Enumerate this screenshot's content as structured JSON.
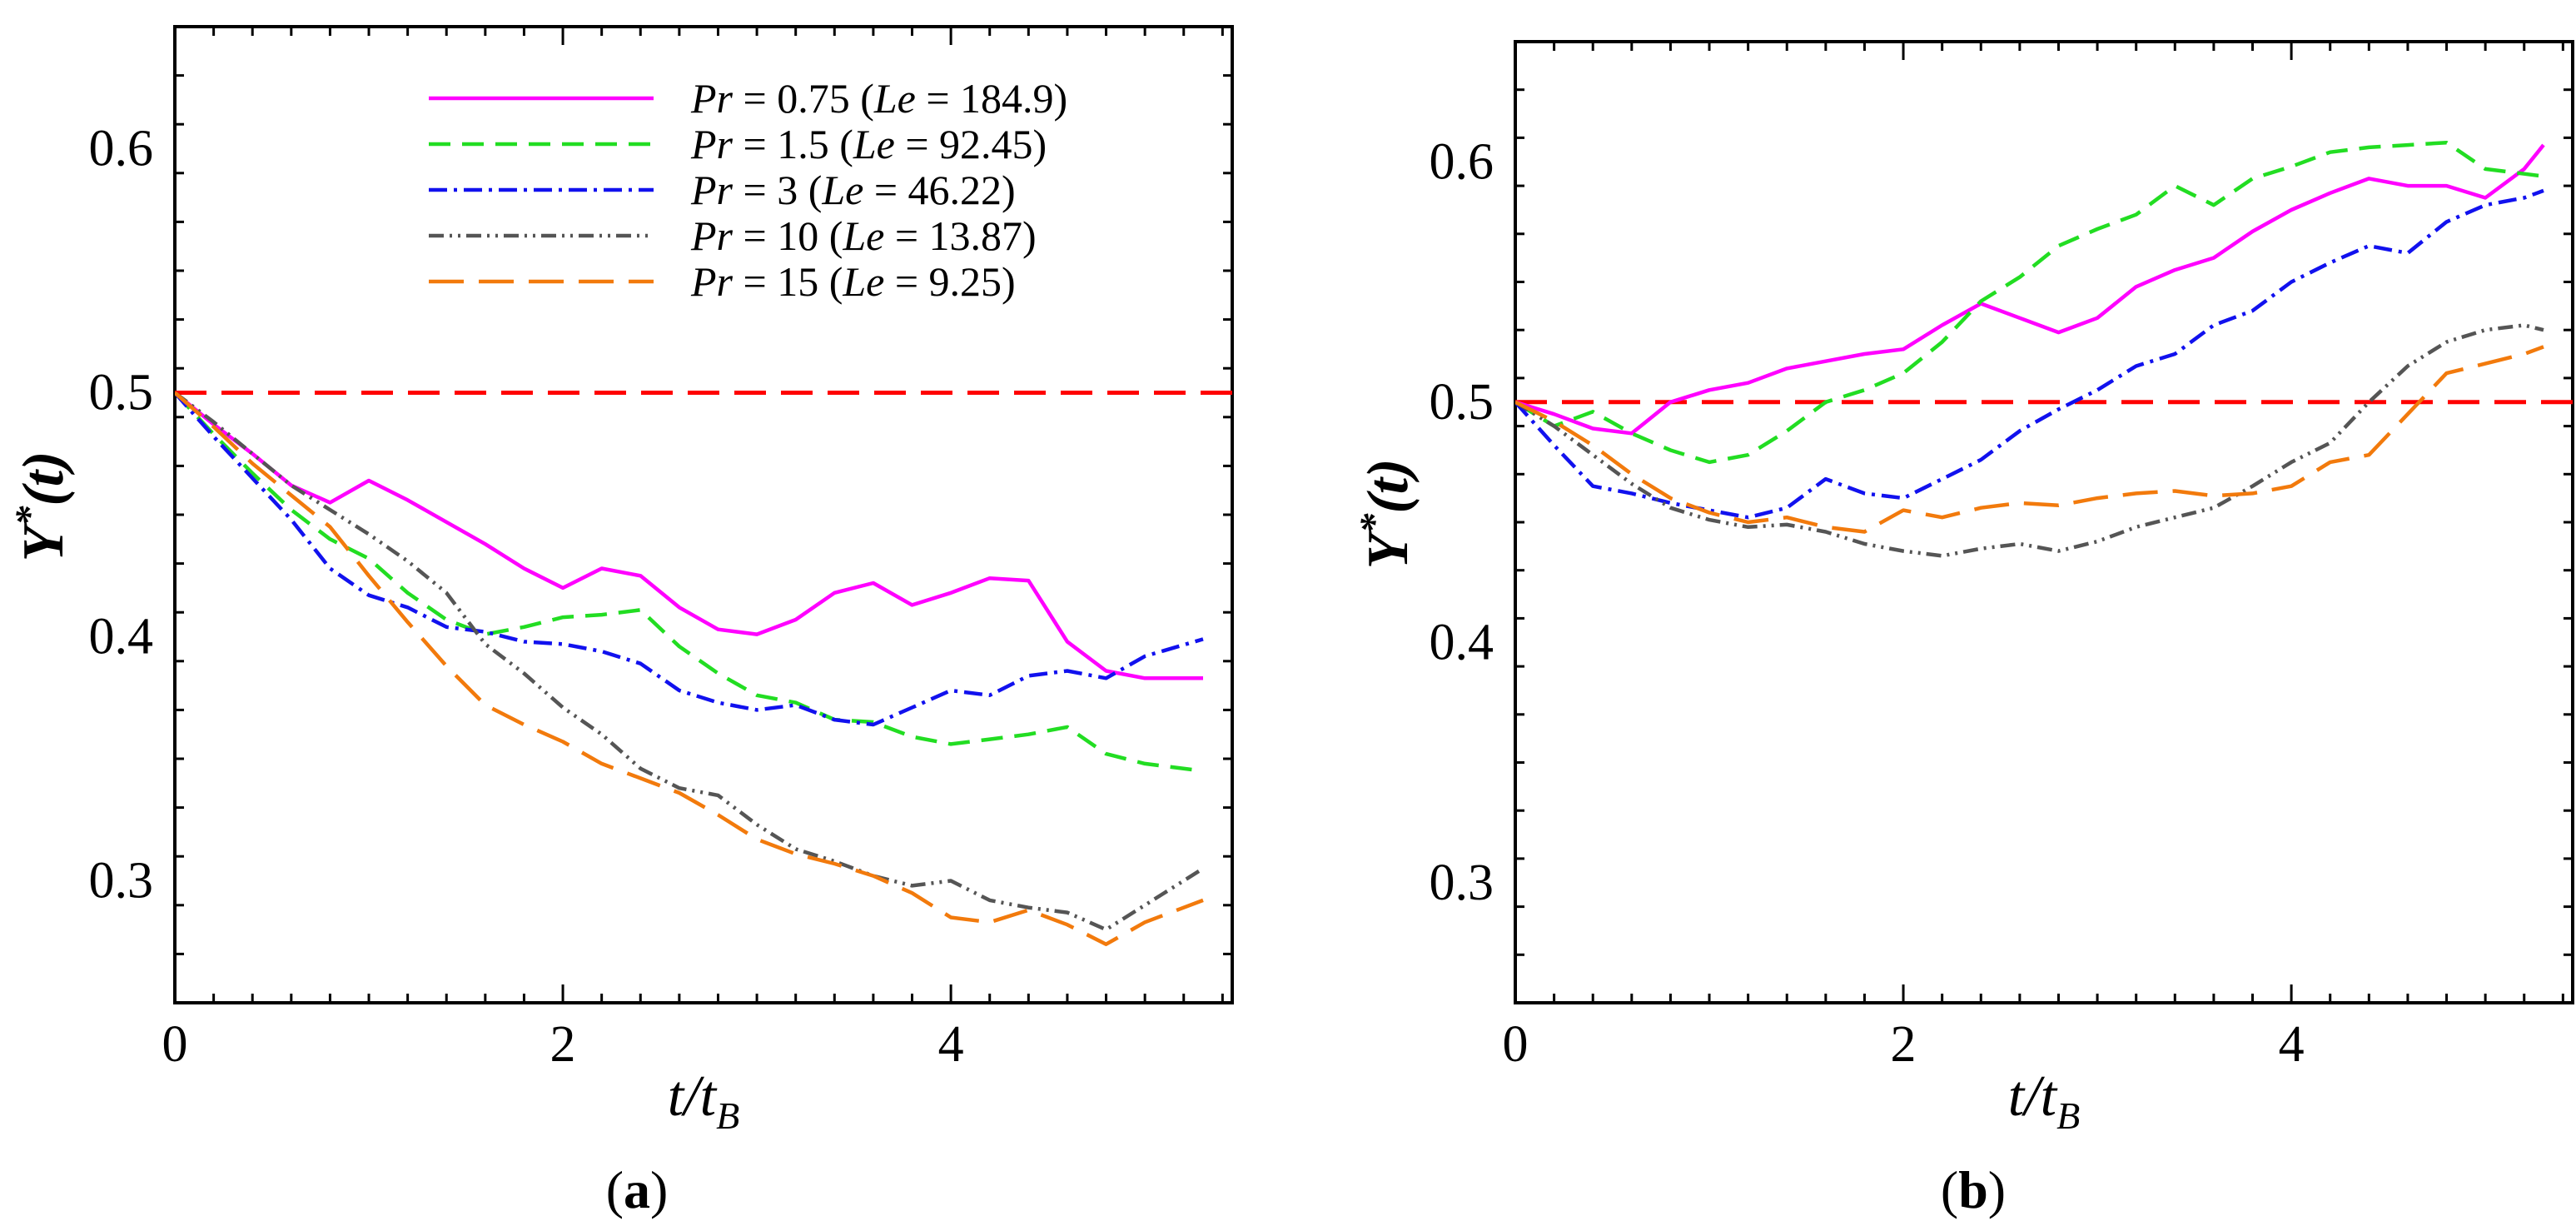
{
  "figure": {
    "colors": {
      "Pr_0.75": "#ff00ff",
      "Pr_1.5": "#22dd22",
      "Pr_3": "#1111ee",
      "Pr_10": "#555555",
      "Pr_15": "#f27a0c",
      "reference": "#ff0000"
    }
  },
  "chart_data": [
    {
      "type": "line",
      "panel_label": "(a)",
      "panel_letter": "a",
      "xlabel": "t/t_B",
      "ylabel": "Y*(t)",
      "xlim": [
        0,
        5.45
      ],
      "ylim": [
        0.25,
        0.65
      ],
      "xticks": [
        0,
        2,
        4
      ],
      "yticks": [
        0.3,
        0.4,
        0.5,
        0.6
      ],
      "reference_line": 0.5,
      "legend": {
        "position": "top-right"
      },
      "series": [
        {
          "key": "Pr_0.75",
          "name": "Pr = 0.75 (Le = 184.9)",
          "pr": "0.75",
          "le": "184.9",
          "style": "solid",
          "x": [
            0,
            0.2,
            0.4,
            0.6,
            0.8,
            1.0,
            1.2,
            1.4,
            1.6,
            1.8,
            2.0,
            2.2,
            2.4,
            2.6,
            2.8,
            3.0,
            3.2,
            3.4,
            3.6,
            3.8,
            4.0,
            4.2,
            4.4,
            4.6,
            4.8,
            5.0,
            5.3
          ],
          "y": [
            0.5,
            0.487,
            0.475,
            0.462,
            0.455,
            0.464,
            0.456,
            0.447,
            0.438,
            0.428,
            0.42,
            0.428,
            0.425,
            0.412,
            0.403,
            0.401,
            0.407,
            0.418,
            0.422,
            0.413,
            0.418,
            0.424,
            0.423,
            0.398,
            0.386,
            0.383,
            0.383
          ]
        },
        {
          "key": "Pr_1.5",
          "name": "Pr = 1.5 (Le = 92.45)",
          "pr": "1.5",
          "le": "92.45",
          "style": "dashed",
          "x": [
            0,
            0.2,
            0.4,
            0.6,
            0.8,
            1.0,
            1.2,
            1.4,
            1.6,
            1.8,
            2.0,
            2.2,
            2.4,
            2.6,
            2.8,
            3.0,
            3.2,
            3.4,
            3.6,
            3.8,
            4.0,
            4.2,
            4.4,
            4.6,
            4.8,
            5.0,
            5.3
          ],
          "y": [
            0.5,
            0.483,
            0.467,
            0.452,
            0.44,
            0.432,
            0.418,
            0.407,
            0.401,
            0.404,
            0.408,
            0.409,
            0.411,
            0.396,
            0.385,
            0.376,
            0.373,
            0.366,
            0.365,
            0.359,
            0.356,
            0.358,
            0.36,
            0.363,
            0.352,
            0.348,
            0.345
          ]
        },
        {
          "key": "Pr_3",
          "name": "Pr = 3 (Le = 46.22)",
          "pr": "3",
          "le": "46.22",
          "style": "dash-dot",
          "x": [
            0,
            0.2,
            0.4,
            0.6,
            0.8,
            1.0,
            1.2,
            1.4,
            1.6,
            1.8,
            2.0,
            2.2,
            2.4,
            2.6,
            2.8,
            3.0,
            3.2,
            3.4,
            3.6,
            3.8,
            4.0,
            4.2,
            4.4,
            4.6,
            4.8,
            5.0,
            5.3
          ],
          "y": [
            0.5,
            0.482,
            0.465,
            0.448,
            0.428,
            0.417,
            0.412,
            0.404,
            0.402,
            0.398,
            0.397,
            0.394,
            0.389,
            0.378,
            0.373,
            0.37,
            0.372,
            0.366,
            0.364,
            0.371,
            0.378,
            0.376,
            0.384,
            0.386,
            0.383,
            0.392,
            0.399
          ]
        },
        {
          "key": "Pr_10",
          "name": "Pr = 10 (Le = 13.87)",
          "pr": "10",
          "le": "13.87",
          "style": "dash-dot-dot",
          "x": [
            0,
            0.2,
            0.4,
            0.6,
            0.8,
            1.0,
            1.2,
            1.4,
            1.6,
            1.8,
            2.0,
            2.2,
            2.4,
            2.6,
            2.8,
            3.0,
            3.2,
            3.4,
            3.6,
            3.8,
            4.0,
            4.2,
            4.4,
            4.6,
            4.8,
            5.0,
            5.3
          ],
          "y": [
            0.5,
            0.488,
            0.475,
            0.462,
            0.452,
            0.442,
            0.431,
            0.418,
            0.397,
            0.385,
            0.371,
            0.36,
            0.346,
            0.338,
            0.335,
            0.323,
            0.313,
            0.308,
            0.302,
            0.298,
            0.3,
            0.292,
            0.289,
            0.287,
            0.28,
            0.29,
            0.305
          ]
        },
        {
          "key": "Pr_15",
          "name": "Pr = 15 (Le = 9.25)",
          "pr": "15",
          "le": "9.25",
          "style": "long-dash",
          "x": [
            0,
            0.2,
            0.4,
            0.6,
            0.8,
            1.0,
            1.2,
            1.4,
            1.6,
            1.8,
            2.0,
            2.2,
            2.4,
            2.6,
            2.8,
            3.0,
            3.2,
            3.4,
            3.6,
            3.8,
            4.0,
            4.2,
            4.4,
            4.6,
            4.8,
            5.0,
            5.3
          ],
          "y": [
            0.5,
            0.486,
            0.471,
            0.458,
            0.445,
            0.425,
            0.406,
            0.388,
            0.372,
            0.364,
            0.357,
            0.348,
            0.342,
            0.336,
            0.327,
            0.317,
            0.311,
            0.307,
            0.302,
            0.295,
            0.285,
            0.283,
            0.288,
            0.282,
            0.274,
            0.283,
            0.292
          ]
        }
      ]
    },
    {
      "type": "line",
      "panel_label": "(b)",
      "panel_letter": "b",
      "xlabel": "t/t_B",
      "ylabel": "Y*(t)",
      "xlim": [
        0,
        5.45
      ],
      "ylim": [
        0.25,
        0.65
      ],
      "xticks": [
        0,
        2,
        4
      ],
      "yticks": [
        0.3,
        0.4,
        0.5,
        0.6
      ],
      "reference_line": 0.5,
      "series": [
        {
          "key": "Pr_0.75",
          "name": "Pr = 0.75 (Le = 184.9)",
          "style": "solid",
          "x": [
            0,
            0.2,
            0.4,
            0.6,
            0.8,
            1.0,
            1.2,
            1.4,
            1.6,
            1.8,
            2.0,
            2.2,
            2.4,
            2.6,
            2.8,
            3.0,
            3.2,
            3.4,
            3.6,
            3.8,
            4.0,
            4.2,
            4.4,
            4.6,
            4.8,
            5.0,
            5.2,
            5.3
          ],
          "y": [
            0.5,
            0.495,
            0.489,
            0.487,
            0.5,
            0.505,
            0.508,
            0.514,
            0.517,
            0.52,
            0.522,
            0.532,
            0.541,
            0.535,
            0.529,
            0.535,
            0.548,
            0.555,
            0.56,
            0.571,
            0.58,
            0.587,
            0.593,
            0.59,
            0.59,
            0.585,
            0.597,
            0.607
          ]
        },
        {
          "key": "Pr_1.5",
          "name": "Pr = 1.5 (Le = 92.45)",
          "style": "dashed",
          "x": [
            0,
            0.2,
            0.4,
            0.6,
            0.8,
            1.0,
            1.2,
            1.4,
            1.6,
            1.8,
            2.0,
            2.2,
            2.4,
            2.6,
            2.8,
            3.0,
            3.2,
            3.4,
            3.6,
            3.8,
            4.0,
            4.2,
            4.4,
            4.6,
            4.8,
            5.0,
            5.2,
            5.3
          ],
          "y": [
            0.5,
            0.49,
            0.496,
            0.487,
            0.48,
            0.475,
            0.478,
            0.488,
            0.5,
            0.505,
            0.512,
            0.525,
            0.542,
            0.552,
            0.565,
            0.572,
            0.578,
            0.59,
            0.582,
            0.593,
            0.598,
            0.604,
            0.606,
            0.607,
            0.608,
            0.597,
            0.595,
            0.594
          ]
        },
        {
          "key": "Pr_3",
          "name": "Pr = 3 (Le = 46.22)",
          "style": "dash-dot",
          "x": [
            0,
            0.2,
            0.4,
            0.6,
            0.8,
            1.0,
            1.2,
            1.4,
            1.6,
            1.8,
            2.0,
            2.2,
            2.4,
            2.6,
            2.8,
            3.0,
            3.2,
            3.4,
            3.6,
            3.8,
            4.0,
            4.2,
            4.4,
            4.6,
            4.8,
            5.0,
            5.2,
            5.3
          ],
          "y": [
            0.5,
            0.482,
            0.465,
            0.462,
            0.458,
            0.455,
            0.452,
            0.456,
            0.468,
            0.462,
            0.46,
            0.468,
            0.476,
            0.488,
            0.497,
            0.505,
            0.515,
            0.52,
            0.532,
            0.538,
            0.55,
            0.558,
            0.565,
            0.562,
            0.575,
            0.582,
            0.585,
            0.588
          ]
        },
        {
          "key": "Pr_10",
          "name": "Pr = 10 (Le = 13.87)",
          "style": "dash-dot-dot",
          "x": [
            0,
            0.2,
            0.4,
            0.6,
            0.8,
            1.0,
            1.2,
            1.4,
            1.6,
            1.8,
            2.0,
            2.2,
            2.4,
            2.6,
            2.8,
            3.0,
            3.2,
            3.4,
            3.6,
            3.8,
            4.0,
            4.2,
            4.4,
            4.6,
            4.8,
            5.0,
            5.2,
            5.3
          ],
          "y": [
            0.5,
            0.49,
            0.478,
            0.466,
            0.456,
            0.451,
            0.448,
            0.449,
            0.446,
            0.441,
            0.438,
            0.436,
            0.439,
            0.441,
            0.438,
            0.442,
            0.448,
            0.452,
            0.456,
            0.465,
            0.475,
            0.483,
            0.5,
            0.515,
            0.525,
            0.53,
            0.532,
            0.53
          ]
        },
        {
          "key": "Pr_15",
          "name": "Pr = 15 (Le = 9.25)",
          "style": "long-dash",
          "x": [
            0,
            0.2,
            0.4,
            0.6,
            0.8,
            1.0,
            1.2,
            1.4,
            1.6,
            1.8,
            2.0,
            2.2,
            2.4,
            2.6,
            2.8,
            3.0,
            3.2,
            3.4,
            3.6,
            3.8,
            4.0,
            4.2,
            4.4,
            4.6,
            4.8,
            5.0,
            5.2,
            5.3
          ],
          "y": [
            0.5,
            0.492,
            0.482,
            0.47,
            0.46,
            0.454,
            0.45,
            0.452,
            0.448,
            0.446,
            0.455,
            0.452,
            0.456,
            0.458,
            0.457,
            0.46,
            0.462,
            0.463,
            0.461,
            0.462,
            0.465,
            0.475,
            0.478,
            0.495,
            0.512,
            0.516,
            0.52,
            0.523
          ]
        }
      ]
    }
  ]
}
